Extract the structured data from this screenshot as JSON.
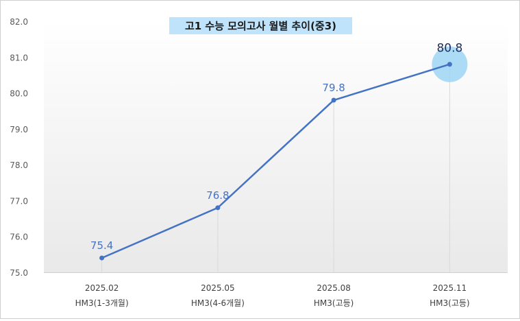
{
  "chart_data": {
    "type": "line",
    "title": "고1 수능 모의고사 월별 추이(중3)",
    "categories": [
      [
        "2025.02",
        "HM3(1-3개월)"
      ],
      [
        "2025.05",
        "HM3(4-6개월)"
      ],
      [
        "2025.08",
        "HM3(고등)"
      ],
      [
        "2025.11",
        "HM3(고등)"
      ]
    ],
    "series": [
      {
        "values": [
          75.4,
          76.8,
          79.8,
          80.8
        ]
      }
    ],
    "data_labels": [
      "75.4",
      "76.8",
      "79.8",
      "80.8"
    ],
    "y_ticks": [
      "82.0",
      "81.0",
      "80.0",
      "79.0",
      "78.0",
      "77.0",
      "76.0",
      "75.0"
    ],
    "ylim": [
      75.0,
      82.0
    ],
    "grid": false,
    "highlight_last_point": true,
    "colors": {
      "line": "#4472c4",
      "highlight": "#9dd5f5",
      "title_bg": "#bfe3fb",
      "plot_bg_top": "#ffffff",
      "plot_bg_bottom": "#eaeaea"
    }
  }
}
